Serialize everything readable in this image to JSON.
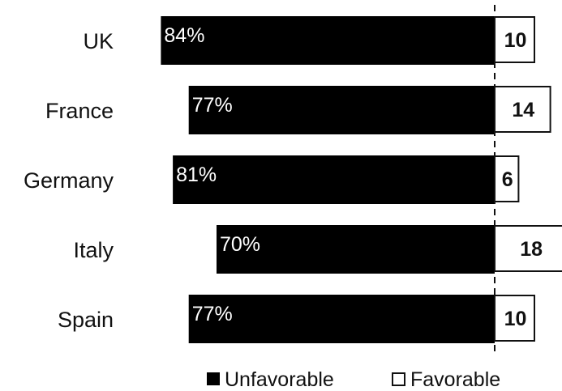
{
  "chart_data": {
    "type": "bar",
    "orientation": "horizontal",
    "stacked": "diverging",
    "categories": [
      "UK",
      "France",
      "Germany",
      "Italy",
      "Spain"
    ],
    "series": [
      {
        "name": "Unfavorable",
        "values": [
          84,
          77,
          81,
          70,
          77
        ],
        "labels": [
          "84%",
          "77%",
          "81%",
          "70%",
          "77%"
        ],
        "color": "#000000"
      },
      {
        "name": "Favorable",
        "values": [
          10,
          14,
          6,
          18,
          10
        ],
        "labels": [
          "10",
          "14",
          "6",
          "18",
          "10"
        ],
        "color": "#ffffff"
      }
    ],
    "legend": {
      "position": "bottom",
      "entries": [
        "Unfavorable",
        "Favorable"
      ]
    },
    "grid": false
  }
}
